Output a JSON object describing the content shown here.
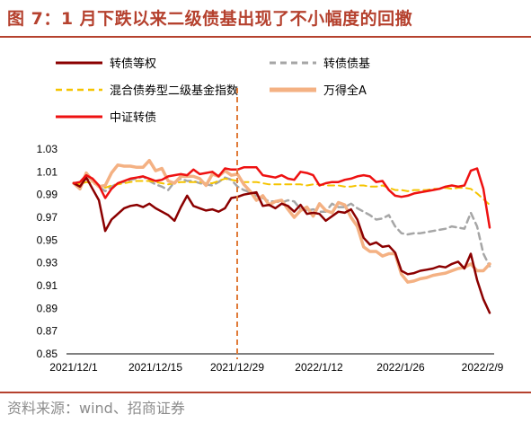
{
  "title": "图 7：1 月下跌以来二级债基出现了不小幅度的回撤",
  "source": "资料来源：wind、招商证券",
  "chart_data": {
    "type": "line",
    "ylim": [
      0.85,
      1.03
    ],
    "yticks": [
      "1.03",
      "1.01",
      "0.99",
      "0.97",
      "0.95",
      "0.93",
      "0.91",
      "0.89",
      "0.87",
      "0.85"
    ],
    "xticks": [
      "2021/12/1",
      "2021/12/15",
      "2021/12/29",
      "2022/1/12",
      "2022/1/26",
      "2022/2/9"
    ],
    "vline_label": "2021/12/29",
    "legend_placement": "top",
    "series": [
      {
        "name": "转债等权",
        "color": "#8b0000",
        "style": "solid",
        "values": [
          1.0,
          0.997,
          1.005,
          0.995,
          0.985,
          0.958,
          0.968,
          0.973,
          0.978,
          0.98,
          0.981,
          0.979,
          0.982,
          0.978,
          0.975,
          0.972,
          0.967,
          0.979,
          0.989,
          0.98,
          0.978,
          0.976,
          0.977,
          0.975,
          0.978,
          0.987,
          0.988,
          0.99,
          0.991,
          0.992,
          0.98,
          0.981,
          0.978,
          0.982,
          0.98,
          0.975,
          0.981,
          0.973,
          0.974,
          0.973,
          0.967,
          0.971,
          0.975,
          0.974,
          0.977,
          0.968,
          0.952,
          0.946,
          0.948,
          0.944,
          0.945,
          0.939,
          0.923,
          0.92,
          0.921,
          0.923,
          0.924,
          0.925,
          0.927,
          0.926,
          0.929,
          0.931,
          0.925,
          0.938,
          0.915,
          0.898,
          0.886
        ]
      },
      {
        "name": "转债债基",
        "color": "#a6a6a6",
        "style": "dashed",
        "values": [
          1.0,
          0.999,
          1.004,
          1.002,
          0.997,
          0.993,
          0.997,
          1.0,
          1.001,
          1.003,
          1.004,
          1.006,
          1.002,
          0.999,
          0.997,
          0.994,
          1.001,
          1.004,
          1.002,
          1.002,
          1.0,
          0.999,
          0.998,
          1.001,
          1.005,
          1.003,
          0.997,
          0.994,
          0.992,
          0.989,
          0.987,
          0.984,
          0.984,
          0.983,
          0.985,
          0.984,
          0.977,
          0.976,
          0.977,
          0.975,
          0.975,
          0.982,
          0.979,
          0.979,
          0.982,
          0.978,
          0.975,
          0.972,
          0.968,
          0.969,
          0.972,
          0.962,
          0.956,
          0.955,
          0.956,
          0.956,
          0.957,
          0.958,
          0.959,
          0.96,
          0.962,
          0.961,
          0.96,
          0.974,
          0.962,
          0.938,
          0.927
        ]
      },
      {
        "name": "混合债券型二级基金指数",
        "color": "#f5c400",
        "style": "dashed",
        "values": [
          1.0,
          0.999,
          1.001,
          1.0,
          0.998,
          0.996,
          0.998,
          0.999,
          1.0,
          1.001,
          1.002,
          1.002,
          1.002,
          1.001,
          1.0,
          0.999,
          1.0,
          1.001,
          1.001,
          1.001,
          1.001,
          1.0,
          1.0,
          1.002,
          1.004,
          1.003,
          1.002,
          1.001,
          1.001,
          1.001,
          1.0,
          0.999,
          0.999,
          0.999,
          0.999,
          0.999,
          0.999,
          0.998,
          0.999,
          0.999,
          0.998,
          0.998,
          0.998,
          0.997,
          0.997,
          0.998,
          0.998,
          0.997,
          0.997,
          0.998,
          0.996,
          0.994,
          0.994,
          0.993,
          0.994,
          0.994,
          0.994,
          0.995,
          0.995,
          0.996,
          0.995,
          0.996,
          0.996,
          0.995,
          0.991,
          0.986,
          0.981
        ]
      },
      {
        "name": "万得全A",
        "color": "#f4b183",
        "style": "solid",
        "values": [
          1.0,
          0.995,
          1.009,
          1.002,
          0.997,
          0.998,
          1.009,
          1.016,
          1.015,
          1.015,
          1.014,
          1.014,
          1.02,
          1.011,
          1.013,
          1.002,
          1.0,
          1.006,
          1.006,
          1.006,
          1.004,
          0.998,
          1.008,
          1.006,
          1.011,
          1.007,
          1.008,
          0.999,
          0.993,
          0.985,
          0.989,
          0.981,
          0.984,
          0.985,
          0.977,
          0.97,
          0.976,
          0.979,
          0.971,
          0.982,
          0.976,
          0.974,
          0.983,
          0.981,
          0.97,
          0.962,
          0.944,
          0.94,
          0.94,
          0.936,
          0.938,
          0.938,
          0.92,
          0.913,
          0.914,
          0.916,
          0.917,
          0.919,
          0.92,
          0.921,
          0.923,
          0.925,
          0.926,
          0.929,
          0.923,
          0.923,
          0.929
        ]
      },
      {
        "name": "中证转债",
        "color": "#ee1111",
        "style": "solid",
        "values": [
          1.0,
          1.001,
          1.007,
          1.004,
          0.998,
          0.987,
          0.995,
          1.0,
          1.002,
          1.004,
          1.005,
          1.006,
          1.004,
          1.002,
          1.003,
          1.006,
          1.007,
          1.008,
          1.007,
          1.012,
          1.008,
          1.009,
          1.01,
          1.006,
          1.013,
          1.012,
          1.012,
          1.014,
          1.014,
          1.014,
          1.007,
          1.006,
          1.005,
          1.007,
          1.004,
          1.003,
          1.01,
          1.009,
          1.007,
          0.998,
          1.0,
          1.001,
          1.001,
          1.003,
          1.004,
          1.006,
          1.007,
          1.006,
          1.001,
          1.002,
          0.994,
          0.989,
          0.988,
          0.989,
          0.991,
          0.992,
          0.993,
          0.994,
          0.995,
          0.997,
          0.998,
          0.997,
          0.998,
          1.011,
          1.013,
          0.995,
          0.961
        ]
      }
    ]
  }
}
